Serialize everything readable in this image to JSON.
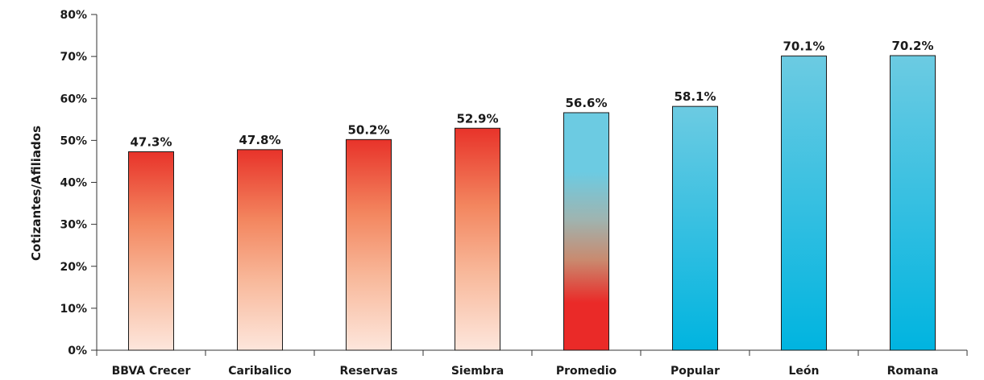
{
  "chart_data": {
    "type": "bar",
    "title": "",
    "xlabel": "",
    "ylabel": "Cotizantes/Afiliados",
    "categories": [
      "BBVA Crecer",
      "Caribalico",
      "Reservas",
      "Siembra",
      "Promedio",
      "Popular",
      "León",
      "Romana"
    ],
    "values": [
      47.3,
      47.8,
      50.2,
      52.9,
      56.6,
      58.1,
      70.1,
      70.2
    ],
    "data_labels": [
      "47.3%",
      "47.8%",
      "50.2%",
      "52.9%",
      "56.6%",
      "58.1%",
      "70.1%",
      "70.2%"
    ],
    "bar_styles": [
      "red-gradient",
      "red-gradient",
      "red-gradient",
      "red-gradient",
      "red-to-blue",
      "blue-gradient",
      "blue-gradient",
      "blue-gradient"
    ],
    "ylim": [
      0,
      80
    ],
    "yticks": [
      0,
      10,
      20,
      30,
      40,
      50,
      60,
      70,
      80
    ],
    "ytick_labels": [
      "0%",
      "10%",
      "20%",
      "30%",
      "40%",
      "50%",
      "60%",
      "70%",
      "80%"
    ],
    "grid": false,
    "legend": "none",
    "colors": {
      "red_dark": "#e8332a",
      "red_light": "#fde6dc",
      "blue_light": "#6ccbe2",
      "blue_dark": "#00b4e0",
      "axis": "#333333"
    }
  }
}
